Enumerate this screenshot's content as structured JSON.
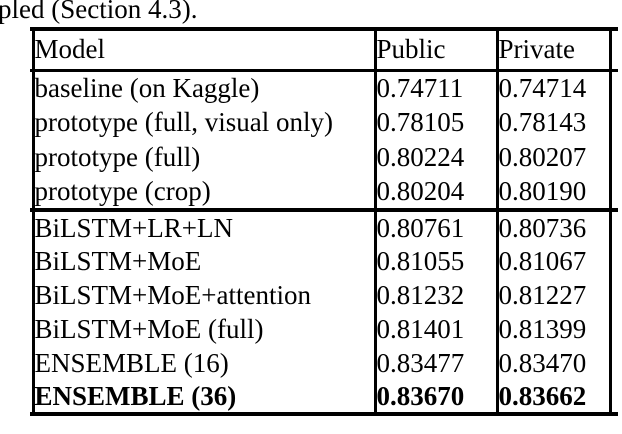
{
  "page": {
    "caption_fragment": "pled (Section 4.3)."
  },
  "table": {
    "columns": [
      "Model",
      "Public",
      "Private"
    ],
    "sections": [
      {
        "rows": [
          {
            "model": "baseline (on Kaggle)",
            "public": "0.74711",
            "private": "0.74714",
            "bold": false
          },
          {
            "model": "prototype (full, visual only)",
            "public": "0.78105",
            "private": "0.78143",
            "bold": false
          },
          {
            "model": "prototype (full)",
            "public": "0.80224",
            "private": "0.80207",
            "bold": false
          },
          {
            "model": "prototype (crop)",
            "public": "0.80204",
            "private": "0.80190",
            "bold": false
          }
        ]
      },
      {
        "rows": [
          {
            "model": "BiLSTM+LR+LN",
            "public": "0.80761",
            "private": "0.80736",
            "bold": false
          },
          {
            "model": "BiLSTM+MoE",
            "public": "0.81055",
            "private": "0.81067",
            "bold": false
          },
          {
            "model": "BiLSTM+MoE+attention",
            "public": "0.81232",
            "private": "0.81227",
            "bold": false
          },
          {
            "model": "BiLSTM+MoE (full)",
            "public": "0.81401",
            "private": "0.81399",
            "bold": false
          },
          {
            "model": "ENSEMBLE (16)",
            "public": "0.83477",
            "private": "0.83470",
            "bold": false
          },
          {
            "model": "ENSEMBLE (36)",
            "public": "0.83670",
            "private": "0.83662",
            "bold": true
          }
        ]
      }
    ]
  },
  "chart_data": {
    "type": "table",
    "title": "",
    "columns": [
      "Model",
      "Public",
      "Private"
    ],
    "rows": [
      [
        "baseline (on Kaggle)",
        0.74711,
        0.74714
      ],
      [
        "prototype (full, visual only)",
        0.78105,
        0.78143
      ],
      [
        "prototype (full)",
        0.80224,
        0.80207
      ],
      [
        "prototype (crop)",
        0.80204,
        0.8019
      ],
      [
        "BiLSTM+LR+LN",
        0.80761,
        0.80736
      ],
      [
        "BiLSTM+MoE",
        0.81055,
        0.81067
      ],
      [
        "BiLSTM+MoE+attention",
        0.81232,
        0.81227
      ],
      [
        "BiLSTM+MoE (full)",
        0.81401,
        0.81399
      ],
      [
        "ENSEMBLE (16)",
        0.83477,
        0.8347
      ],
      [
        "ENSEMBLE (36)",
        0.8367,
        0.83662
      ]
    ]
  }
}
